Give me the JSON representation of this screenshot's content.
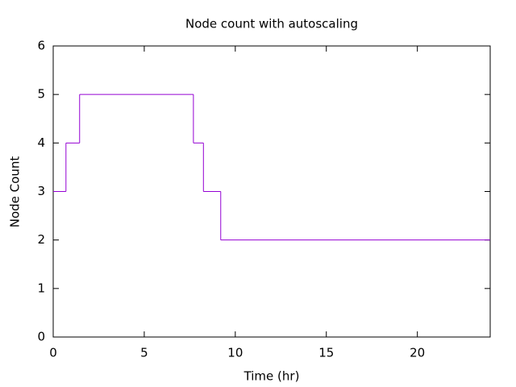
{
  "chart_data": {
    "type": "line",
    "step": "post",
    "title": "Node count with autoscaling",
    "x_label": "Time (hr)",
    "y_label": "Node Count",
    "x": [
      0,
      0.7,
      1.45,
      7.7,
      8.25,
      9.2
    ],
    "series": [
      {
        "color": "#9400d3",
        "values": [
          3,
          4,
          5,
          4,
          3,
          2
        ]
      }
    ],
    "xlim": [
      0,
      24
    ],
    "xticks": [
      0,
      5,
      10,
      15,
      20
    ],
    "ylim": [
      0,
      6
    ],
    "yticks": [
      0,
      1,
      2,
      3,
      4,
      5,
      6
    ],
    "mirror_ticks": true
  }
}
